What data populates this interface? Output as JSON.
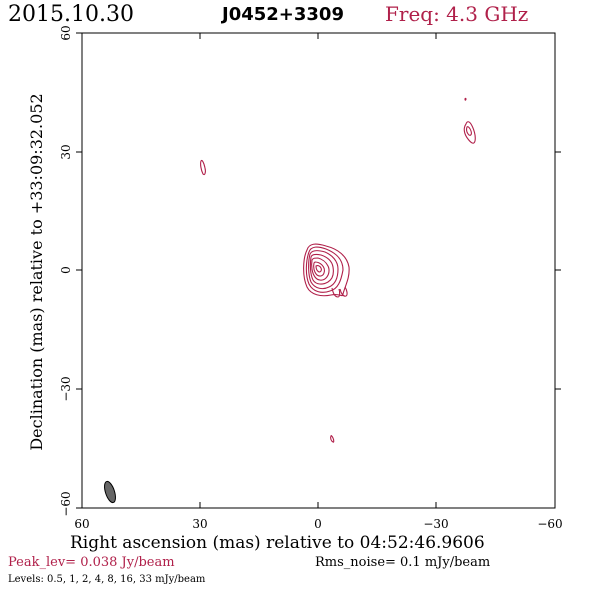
{
  "header": {
    "date": "2015.10.30",
    "source": "J0452+3309",
    "freq": "Freq: 4.3 GHz"
  },
  "axes": {
    "xlabel": "Right ascension (mas) relative to 04:52:46.9606",
    "ylabel": "Declination (mas) relative to +33:09:32.052",
    "xticks": [
      "60",
      "30",
      "0",
      "−30",
      "−60"
    ],
    "yticks": [
      "60",
      "30",
      "0",
      "−30",
      "−60"
    ],
    "xlim": [
      60,
      -60
    ],
    "ylim": [
      -60,
      60
    ]
  },
  "footer": {
    "peak": "Peak_lev=  0.038 Jy/beam",
    "rms": "Rms_noise=  0.1 mJy/beam",
    "levels": "Levels: 0.5,   1,   2,   4,   8,  16,  33 mJy/beam"
  },
  "colors": {
    "contour": "#b0204a",
    "beam": "#666666"
  }
}
